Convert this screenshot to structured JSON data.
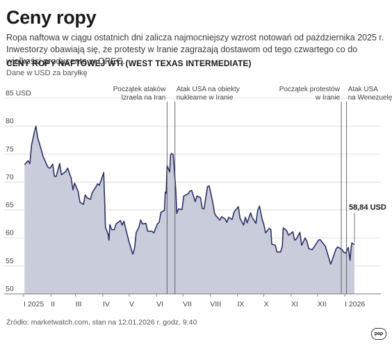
{
  "header": {
    "title": "Ceny ropy",
    "lead": "Ropa naftowa w ciągu ostatnich dni zalicza najmocniejszy wzrost notowań od października 2025 r. Inwestorzy obawiają się, że protesty w Iranie zagrażają dostawom od tego czwartego co do wielkości producenta w OPEC."
  },
  "chart_data": {
    "type": "area",
    "title": "CENY ROPY NAFTOWEJ WTI (WEST TEXAS INTERMEDIATE)",
    "subtitle": "Dane w USD za baryłkę",
    "ylim": [
      50,
      85
    ],
    "y_ticks": [
      {
        "value": 85,
        "label": "85 USD"
      },
      {
        "value": 80,
        "label": "80"
      },
      {
        "value": 75,
        "label": "75"
      },
      {
        "value": 70,
        "label": "70"
      },
      {
        "value": 65,
        "label": "65"
      },
      {
        "value": 60,
        "label": "60"
      },
      {
        "value": 55,
        "label": "55"
      },
      {
        "value": 50,
        "label": "50"
      }
    ],
    "grid": true,
    "x_start": "2025-01-01",
    "x_end": "2026-01-12",
    "x_ticks": [
      {
        "date": "2025-01-01",
        "label": "I 2025"
      },
      {
        "date": "2025-02-01",
        "label": "II"
      },
      {
        "date": "2025-03-01",
        "label": "III"
      },
      {
        "date": "2025-04-01",
        "label": "IV"
      },
      {
        "date": "2025-05-01",
        "label": "V"
      },
      {
        "date": "2025-06-01",
        "label": "VI"
      },
      {
        "date": "2025-07-01",
        "label": "VII"
      },
      {
        "date": "2025-08-01",
        "label": "VIII"
      },
      {
        "date": "2025-09-01",
        "label": "IX"
      },
      {
        "date": "2025-10-01",
        "label": "X"
      },
      {
        "date": "2025-11-01",
        "label": "XI"
      },
      {
        "date": "2025-12-01",
        "label": "XII"
      },
      {
        "date": "2026-01-01",
        "label": "I 2026"
      }
    ],
    "series": [
      {
        "points": [
          [
            "2025-01-02",
            73.1
          ],
          [
            "2025-01-06",
            73.8
          ],
          [
            "2025-01-08",
            73.3
          ],
          [
            "2025-01-10",
            76.6
          ],
          [
            "2025-01-13",
            78.8
          ],
          [
            "2025-01-15",
            80.0
          ],
          [
            "2025-01-17",
            77.9
          ],
          [
            "2025-01-21",
            75.8
          ],
          [
            "2025-01-23",
            74.6
          ],
          [
            "2025-01-27",
            73.2
          ],
          [
            "2025-01-29",
            72.6
          ],
          [
            "2025-01-31",
            72.5
          ],
          [
            "2025-02-03",
            73.2
          ],
          [
            "2025-02-05",
            71.0
          ],
          [
            "2025-02-07",
            71.0
          ],
          [
            "2025-02-11",
            73.3
          ],
          [
            "2025-02-13",
            71.3
          ],
          [
            "2025-02-18",
            71.9
          ],
          [
            "2025-02-20",
            72.5
          ],
          [
            "2025-02-24",
            70.7
          ],
          [
            "2025-02-26",
            68.6
          ],
          [
            "2025-02-28",
            69.8
          ],
          [
            "2025-03-04",
            68.3
          ],
          [
            "2025-03-06",
            66.4
          ],
          [
            "2025-03-10",
            66.0
          ],
          [
            "2025-03-12",
            67.7
          ],
          [
            "2025-03-14",
            67.2
          ],
          [
            "2025-03-18",
            66.9
          ],
          [
            "2025-03-20",
            68.1
          ],
          [
            "2025-03-24",
            69.1
          ],
          [
            "2025-03-26",
            69.7
          ],
          [
            "2025-03-28",
            69.4
          ],
          [
            "2025-04-01",
            71.2
          ],
          [
            "2025-04-02",
            71.7
          ],
          [
            "2025-04-03",
            66.9
          ],
          [
            "2025-04-04",
            61.9
          ],
          [
            "2025-04-07",
            60.7
          ],
          [
            "2025-04-08",
            59.6
          ],
          [
            "2025-04-09",
            62.4
          ],
          [
            "2025-04-11",
            61.5
          ],
          [
            "2025-04-14",
            61.5
          ],
          [
            "2025-04-16",
            62.5
          ],
          [
            "2025-04-21",
            63.1
          ],
          [
            "2025-04-23",
            62.3
          ],
          [
            "2025-04-25",
            63.0
          ],
          [
            "2025-04-29",
            60.4
          ],
          [
            "2025-05-01",
            59.2
          ],
          [
            "2025-05-05",
            57.1
          ],
          [
            "2025-05-07",
            58.1
          ],
          [
            "2025-05-09",
            61.0
          ],
          [
            "2025-05-12",
            61.9
          ],
          [
            "2025-05-14",
            63.2
          ],
          [
            "2025-05-16",
            62.5
          ],
          [
            "2025-05-20",
            62.6
          ],
          [
            "2025-05-22",
            61.2
          ],
          [
            "2025-05-27",
            61.2
          ],
          [
            "2025-05-29",
            60.9
          ],
          [
            "2025-06-02",
            62.5
          ],
          [
            "2025-06-04",
            62.8
          ],
          [
            "2025-06-06",
            64.6
          ],
          [
            "2025-06-10",
            64.9
          ],
          [
            "2025-06-11",
            68.2
          ],
          [
            "2025-06-12",
            68.0
          ],
          [
            "2025-06-13",
            72.9
          ],
          [
            "2025-06-16",
            71.8
          ],
          [
            "2025-06-17",
            74.8
          ],
          [
            "2025-06-18",
            75.1
          ],
          [
            "2025-06-20",
            74.9
          ],
          [
            "2025-06-23",
            68.5
          ],
          [
            "2025-06-24",
            64.4
          ],
          [
            "2025-06-26",
            65.2
          ],
          [
            "2025-06-30",
            65.1
          ],
          [
            "2025-07-02",
            67.5
          ],
          [
            "2025-07-07",
            67.9
          ],
          [
            "2025-07-09",
            68.4
          ],
          [
            "2025-07-11",
            68.5
          ],
          [
            "2025-07-15",
            66.5
          ],
          [
            "2025-07-17",
            67.5
          ],
          [
            "2025-07-21",
            67.2
          ],
          [
            "2025-07-23",
            65.3
          ],
          [
            "2025-07-25",
            65.2
          ],
          [
            "2025-07-29",
            69.2
          ],
          [
            "2025-07-31",
            69.3
          ],
          [
            "2025-08-04",
            66.3
          ],
          [
            "2025-08-06",
            64.4
          ],
          [
            "2025-08-08",
            63.9
          ],
          [
            "2025-08-12",
            63.2
          ],
          [
            "2025-08-14",
            63.8
          ],
          [
            "2025-08-18",
            63.4
          ],
          [
            "2025-08-20",
            62.8
          ],
          [
            "2025-08-22",
            63.7
          ],
          [
            "2025-08-26",
            63.3
          ],
          [
            "2025-08-28",
            64.6
          ],
          [
            "2025-09-02",
            65.6
          ],
          [
            "2025-09-04",
            63.5
          ],
          [
            "2025-09-08",
            62.3
          ],
          [
            "2025-09-10",
            63.7
          ],
          [
            "2025-09-12",
            62.7
          ],
          [
            "2025-09-16",
            64.5
          ],
          [
            "2025-09-18",
            63.6
          ],
          [
            "2025-09-22",
            62.6
          ],
          [
            "2025-09-24",
            64.9
          ],
          [
            "2025-09-26",
            65.7
          ],
          [
            "2025-09-29",
            63.4
          ],
          [
            "2025-10-01",
            62.4
          ],
          [
            "2025-10-03",
            60.9
          ],
          [
            "2025-10-07",
            61.7
          ],
          [
            "2025-10-09",
            61.5
          ],
          [
            "2025-10-10",
            58.9
          ],
          [
            "2025-10-14",
            58.7
          ],
          [
            "2025-10-16",
            57.5
          ],
          [
            "2025-10-20",
            57.5
          ],
          [
            "2025-10-22",
            58.5
          ],
          [
            "2025-10-23",
            61.8
          ],
          [
            "2025-10-27",
            61.3
          ],
          [
            "2025-10-29",
            60.5
          ],
          [
            "2025-11-03",
            61.1
          ],
          [
            "2025-11-05",
            59.6
          ],
          [
            "2025-11-07",
            59.8
          ],
          [
            "2025-11-11",
            61.0
          ],
          [
            "2025-11-13",
            58.7
          ],
          [
            "2025-11-17",
            60.0
          ],
          [
            "2025-11-19",
            59.4
          ],
          [
            "2025-11-21",
            58.1
          ],
          [
            "2025-11-25",
            57.9
          ],
          [
            "2025-11-28",
            58.6
          ],
          [
            "2025-12-02",
            59.6
          ],
          [
            "2025-12-04",
            59.7
          ],
          [
            "2025-12-08",
            58.9
          ],
          [
            "2025-12-10",
            58.5
          ],
          [
            "2025-12-12",
            57.4
          ],
          [
            "2025-12-16",
            55.3
          ],
          [
            "2025-12-18",
            56.2
          ],
          [
            "2025-12-22",
            58.0
          ],
          [
            "2025-12-24",
            58.4
          ],
          [
            "2025-12-29",
            57.9
          ],
          [
            "2025-12-31",
            57.4
          ],
          [
            "2026-01-02",
            57.3
          ],
          [
            "2026-01-05",
            58.3
          ],
          [
            "2026-01-06",
            57.1
          ],
          [
            "2026-01-07",
            56.0
          ],
          [
            "2026-01-08",
            57.8
          ],
          [
            "2026-01-09",
            59.1
          ],
          [
            "2026-01-12",
            58.84
          ]
        ]
      }
    ],
    "annotations": [
      {
        "date": "2025-06-13",
        "lines": [
          "Początek ataków",
          "Izraela na Iran"
        ],
        "align": "end"
      },
      {
        "date": "2025-06-22",
        "lines": [
          "Atak USA na obiekty",
          "nuklearne w Iranie"
        ],
        "align": "start"
      },
      {
        "date": "2025-12-28",
        "lines": [
          "Początek protestów",
          "w Iranie"
        ],
        "align": "end"
      },
      {
        "date": "2026-01-03",
        "lines": [
          "Atak USA",
          "na Wenezuelę"
        ],
        "align": "start"
      }
    ],
    "last_value_label": "58,84 USD",
    "colors": {
      "fill": "#c9ccda",
      "line": "#2b3166",
      "grid": "#d6d6d6",
      "marker": "#555555"
    }
  },
  "footer": {
    "source": "Źródło: marketwatch.com, stan na 12.01.2026 r. godz. 9:40",
    "logo": "pap"
  }
}
